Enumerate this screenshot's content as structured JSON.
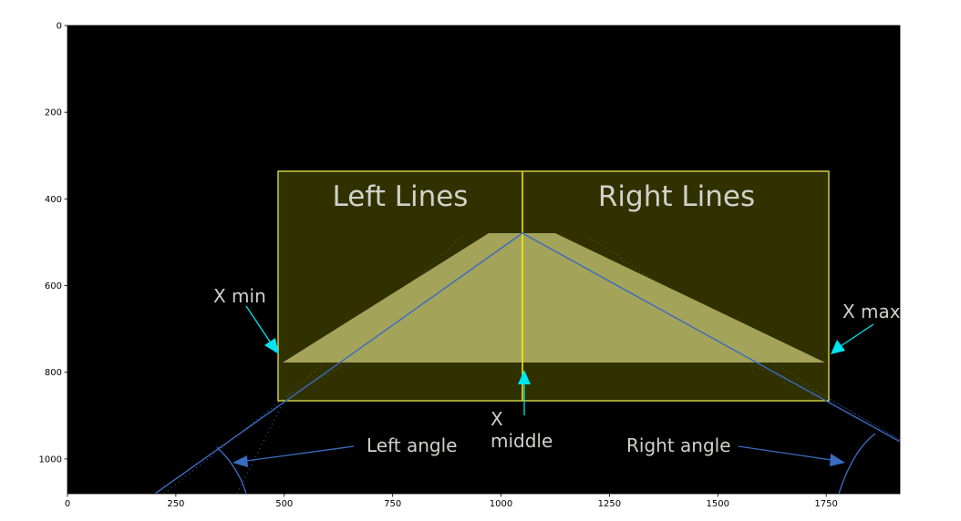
{
  "plot": {
    "x_range": [
      0,
      1920
    ],
    "y_range": [
      0,
      1080
    ],
    "x_ticks": [
      0,
      250,
      500,
      750,
      1000,
      1250,
      1500,
      1750
    ],
    "y_ticks": [
      0,
      200,
      400,
      600,
      800,
      1000
    ],
    "background": "#000000",
    "frame_color": "#ffffff"
  },
  "regions": {
    "left_label": "Left Lines",
    "right_label": "Right Lines",
    "box_fill": "#3a3a00",
    "box_stroke": "#e6e64a"
  },
  "trapezoid": {
    "fill": "#fffcc8",
    "points": [
      [
        500,
        780
      ],
      [
        970,
        480
      ],
      [
        1130,
        480
      ],
      [
        1750,
        780
      ]
    ]
  },
  "box": {
    "x_min": 490,
    "x_max": 1760,
    "y_top": 340,
    "y_bottom": 870,
    "x_middle": 1050
  },
  "guide_lines": {
    "color": "#3a6cc0",
    "left": [
      [
        200,
        1080
      ],
      [
        1050,
        480
      ]
    ],
    "right": [
      [
        1050,
        480
      ],
      [
        2010,
        1010
      ]
    ]
  },
  "annotations": {
    "x_min": "X min",
    "x_max": "X max",
    "x_middle_line1": "X",
    "x_middle_line2": "middle",
    "left_angle": "Left angle",
    "right_angle": "Right angle",
    "arrow_color": "#00e5ee",
    "angle_arrow_color": "#3a6cc0"
  }
}
